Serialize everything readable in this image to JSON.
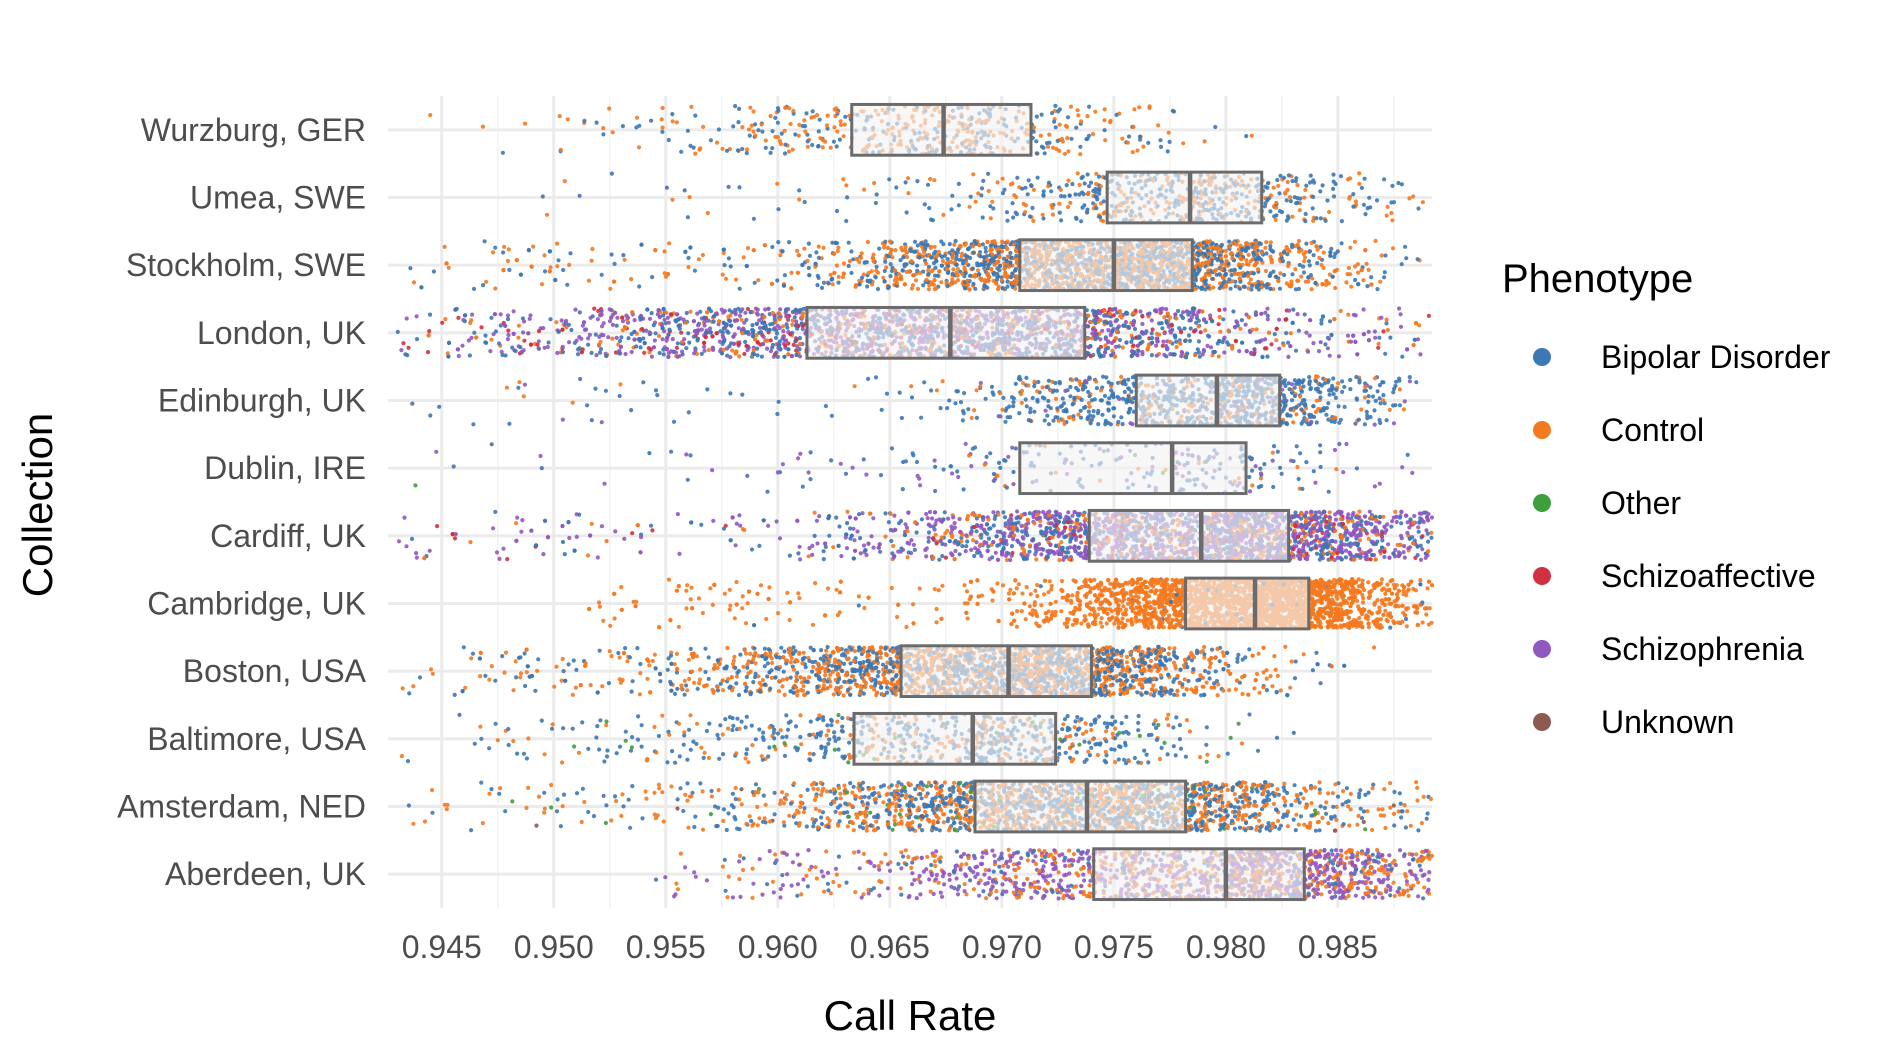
{
  "chart_data": {
    "type": "boxplot-jitter",
    "orientation": "horizontal",
    "xlabel": "Call Rate",
    "ylabel": "Collection",
    "xlim": [
      0.9426,
      0.9892
    ],
    "x_ticks": [
      "0.945",
      "0.950",
      "0.955",
      "0.960",
      "0.965",
      "0.970",
      "0.975",
      "0.980",
      "0.985"
    ],
    "grid": "on",
    "legend": {
      "title": "Phenotype",
      "position": "right",
      "entries": [
        {
          "name": "Bipolar Disorder",
          "color": "#3C78B4"
        },
        {
          "name": "Control",
          "color": "#F5791F"
        },
        {
          "name": "Other",
          "color": "#3EA03C"
        },
        {
          "name": "Schizoaffective",
          "color": "#D03040"
        },
        {
          "name": "Schizophrenia",
          "color": "#9058C0"
        },
        {
          "name": "Unknown",
          "color": "#8C5A50"
        }
      ]
    },
    "categories": [
      "Wurzburg, GER",
      "Umea, SWE",
      "Stockholm, SWE",
      "London, UK",
      "Edinburgh, UK",
      "Dublin, IRE",
      "Cardiff, UK",
      "Cambridge, UK",
      "Boston, USA",
      "Baltimore, USA",
      "Amsterdam, NED",
      "Aberdeen, UK"
    ],
    "boxes": [
      {
        "category": "Wurzburg, GER",
        "q1": 0.9633,
        "median": 0.9674,
        "q3": 0.9713,
        "min": 0.9444,
        "max": 0.9813
      },
      {
        "category": "Umea, SWE",
        "q1": 0.9747,
        "median": 0.9784,
        "q3": 0.9816,
        "min": 0.949,
        "max": 0.9888
      },
      {
        "category": "Stockholm, SWE",
        "q1": 0.9708,
        "median": 0.975,
        "q3": 0.9785,
        "min": 0.943,
        "max": 0.9892
      },
      {
        "category": "London, UK",
        "q1": 0.9613,
        "median": 0.9677,
        "q3": 0.9737,
        "min": 0.9426,
        "max": 0.9892
      },
      {
        "category": "Edinburgh, UK",
        "q1": 0.976,
        "median": 0.9796,
        "q3": 0.9824,
        "min": 0.943,
        "max": 0.9885
      },
      {
        "category": "Dublin, IRE",
        "q1": 0.9708,
        "median": 0.9776,
        "q3": 0.9809,
        "min": 0.943,
        "max": 0.9892
      },
      {
        "category": "Cardiff, UK",
        "q1": 0.9739,
        "median": 0.9789,
        "q3": 0.9828,
        "min": 0.943,
        "max": 0.9892
      },
      {
        "category": "Cambridge, UK",
        "q1": 0.9782,
        "median": 0.9813,
        "q3": 0.9837,
        "min": 0.9515,
        "max": 0.9892
      },
      {
        "category": "Boston, USA",
        "q1": 0.9655,
        "median": 0.9703,
        "q3": 0.974,
        "min": 0.9426,
        "max": 0.9877
      },
      {
        "category": "Baltimore, USA",
        "q1": 0.9634,
        "median": 0.9687,
        "q3": 0.9724,
        "min": 0.9426,
        "max": 0.9845
      },
      {
        "category": "Amsterdam, NED",
        "q1": 0.9688,
        "median": 0.9738,
        "q3": 0.9782,
        "min": 0.943,
        "max": 0.9892
      },
      {
        "category": "Aberdeen, UK",
        "q1": 0.9741,
        "median": 0.98,
        "q3": 0.9835,
        "min": 0.9545,
        "max": 0.9892
      }
    ],
    "point_mix": [
      {
        "category": "Wurzburg, GER",
        "n": 500,
        "phenotypes": {
          "Bipolar Disorder": 0.4,
          "Control": 0.6
        }
      },
      {
        "category": "Umea, SWE",
        "n": 600,
        "phenotypes": {
          "Bipolar Disorder": 0.6,
          "Control": 0.4
        }
      },
      {
        "category": "Stockholm, SWE",
        "n": 2500,
        "phenotypes": {
          "Bipolar Disorder": 0.45,
          "Control": 0.55
        }
      },
      {
        "category": "London, UK",
        "n": 2500,
        "phenotypes": {
          "Bipolar Disorder": 0.35,
          "Control": 0.15,
          "Schizoaffective": 0.1,
          "Schizophrenia": 0.4
        }
      },
      {
        "category": "Edinburgh, UK",
        "n": 1000,
        "phenotypes": {
          "Bipolar Disorder": 0.75,
          "Control": 0.2,
          "Schizophrenia": 0.05
        }
      },
      {
        "category": "Dublin, IRE",
        "n": 250,
        "phenotypes": {
          "Bipolar Disorder": 0.6,
          "Control": 0.1,
          "Other": 0.03,
          "Schizophrenia": 0.27
        }
      },
      {
        "category": "Cardiff, UK",
        "n": 2500,
        "phenotypes": {
          "Bipolar Disorder": 0.3,
          "Control": 0.15,
          "Schizoaffective": 0.05,
          "Schizophrenia": 0.5
        }
      },
      {
        "category": "Cambridge, UK",
        "n": 3000,
        "phenotypes": {
          "Control": 0.98,
          "Bipolar Disorder": 0.02
        }
      },
      {
        "category": "Boston, USA",
        "n": 2500,
        "phenotypes": {
          "Bipolar Disorder": 0.45,
          "Control": 0.55
        }
      },
      {
        "category": "Baltimore, USA",
        "n": 700,
        "phenotypes": {
          "Bipolar Disorder": 0.65,
          "Control": 0.3,
          "Other": 0.05
        }
      },
      {
        "category": "Amsterdam, NED",
        "n": 2000,
        "phenotypes": {
          "Bipolar Disorder": 0.45,
          "Control": 0.5,
          "Other": 0.03,
          "Unknown": 0.02
        }
      },
      {
        "category": "Aberdeen, UK",
        "n": 1500,
        "phenotypes": {
          "Schizophrenia": 0.5,
          "Control": 0.35,
          "Bipolar Disorder": 0.15
        }
      }
    ]
  }
}
